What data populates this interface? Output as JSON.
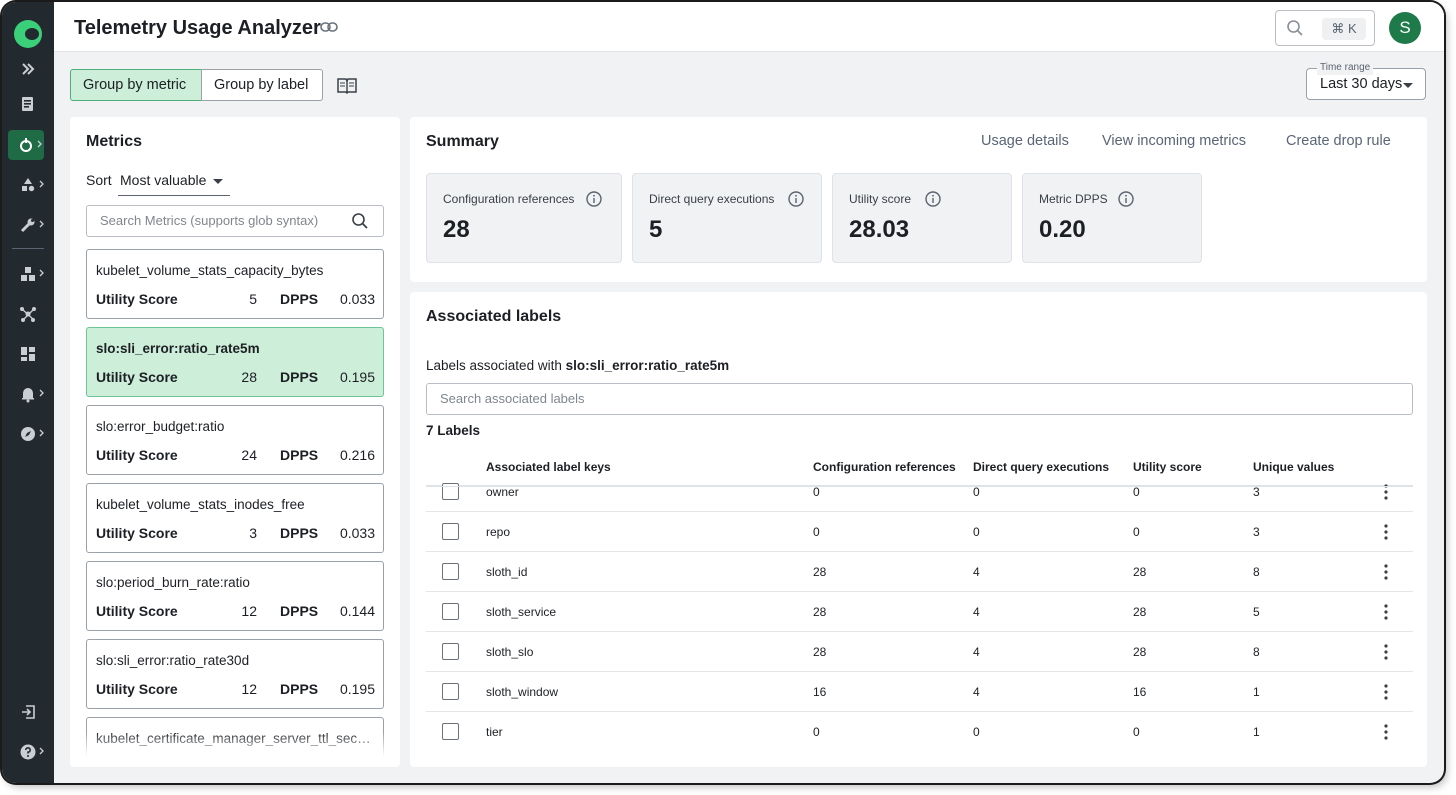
{
  "app": {
    "title": "Telemetry Usage Analyzer",
    "search_shortcut": "⌘ K",
    "avatar_initial": "S",
    "accent_color": "#3ccf7a"
  },
  "toolbar": {
    "group_by_metric": "Group by metric",
    "group_by_label": "Group by label",
    "time_range_label": "Time range",
    "time_range_value": "Last 30 days"
  },
  "metrics": {
    "title": "Metrics",
    "sort_label": "Sort",
    "sort_value": "Most valuable",
    "search_placeholder": "Search Metrics (supports glob syntax)",
    "utility_label": "Utility Score",
    "dpps_label": "DPPS",
    "items": [
      {
        "name": "kubelet_volume_stats_capacity_bytes",
        "utility": "5",
        "dpps": "0.033"
      },
      {
        "name": "slo:sli_error:ratio_rate5m",
        "utility": "28",
        "dpps": "0.195"
      },
      {
        "name": "slo:error_budget:ratio",
        "utility": "24",
        "dpps": "0.216"
      },
      {
        "name": "kubelet_volume_stats_inodes_free",
        "utility": "3",
        "dpps": "0.033"
      },
      {
        "name": "slo:period_burn_rate:ratio",
        "utility": "12",
        "dpps": "0.144"
      },
      {
        "name": "slo:sli_error:ratio_rate30d",
        "utility": "12",
        "dpps": "0.195"
      },
      {
        "name": "kubelet_certificate_manager_server_ttl_seconds"
      }
    ]
  },
  "summary": {
    "title": "Summary",
    "links": [
      "Usage details",
      "View incoming metrics",
      "Create drop rule"
    ],
    "stats": [
      {
        "label": "Configuration references",
        "value": "28"
      },
      {
        "label": "Direct query executions",
        "value": "5"
      },
      {
        "label": "Utility score",
        "value": "28.03"
      },
      {
        "label": "Metric DPPS",
        "value": "0.20"
      }
    ]
  },
  "labels": {
    "title": "Associated labels",
    "associated_prefix": "Labels associated with",
    "associated_metric": "slo:sli_error:ratio_rate5m",
    "search_placeholder": "Search associated labels",
    "count": "7 Labels",
    "columns": [
      "Associated label keys",
      "Configuration references",
      "Direct query executions",
      "Utility score",
      "Unique values"
    ],
    "rows": [
      {
        "key": "owner",
        "config": "0",
        "direct": "0",
        "utility": "0",
        "unique": "3"
      },
      {
        "key": "repo",
        "config": "0",
        "direct": "0",
        "utility": "0",
        "unique": "3"
      },
      {
        "key": "sloth_id",
        "config": "28",
        "direct": "4",
        "utility": "28",
        "unique": "8"
      },
      {
        "key": "sloth_service",
        "config": "28",
        "direct": "4",
        "utility": "28",
        "unique": "5"
      },
      {
        "key": "sloth_slo",
        "config": "28",
        "direct": "4",
        "utility": "28",
        "unique": "8"
      },
      {
        "key": "sloth_window",
        "config": "16",
        "direct": "4",
        "utility": "16",
        "unique": "1"
      },
      {
        "key": "tier",
        "config": "0",
        "direct": "0",
        "utility": "0",
        "unique": "1"
      }
    ]
  }
}
